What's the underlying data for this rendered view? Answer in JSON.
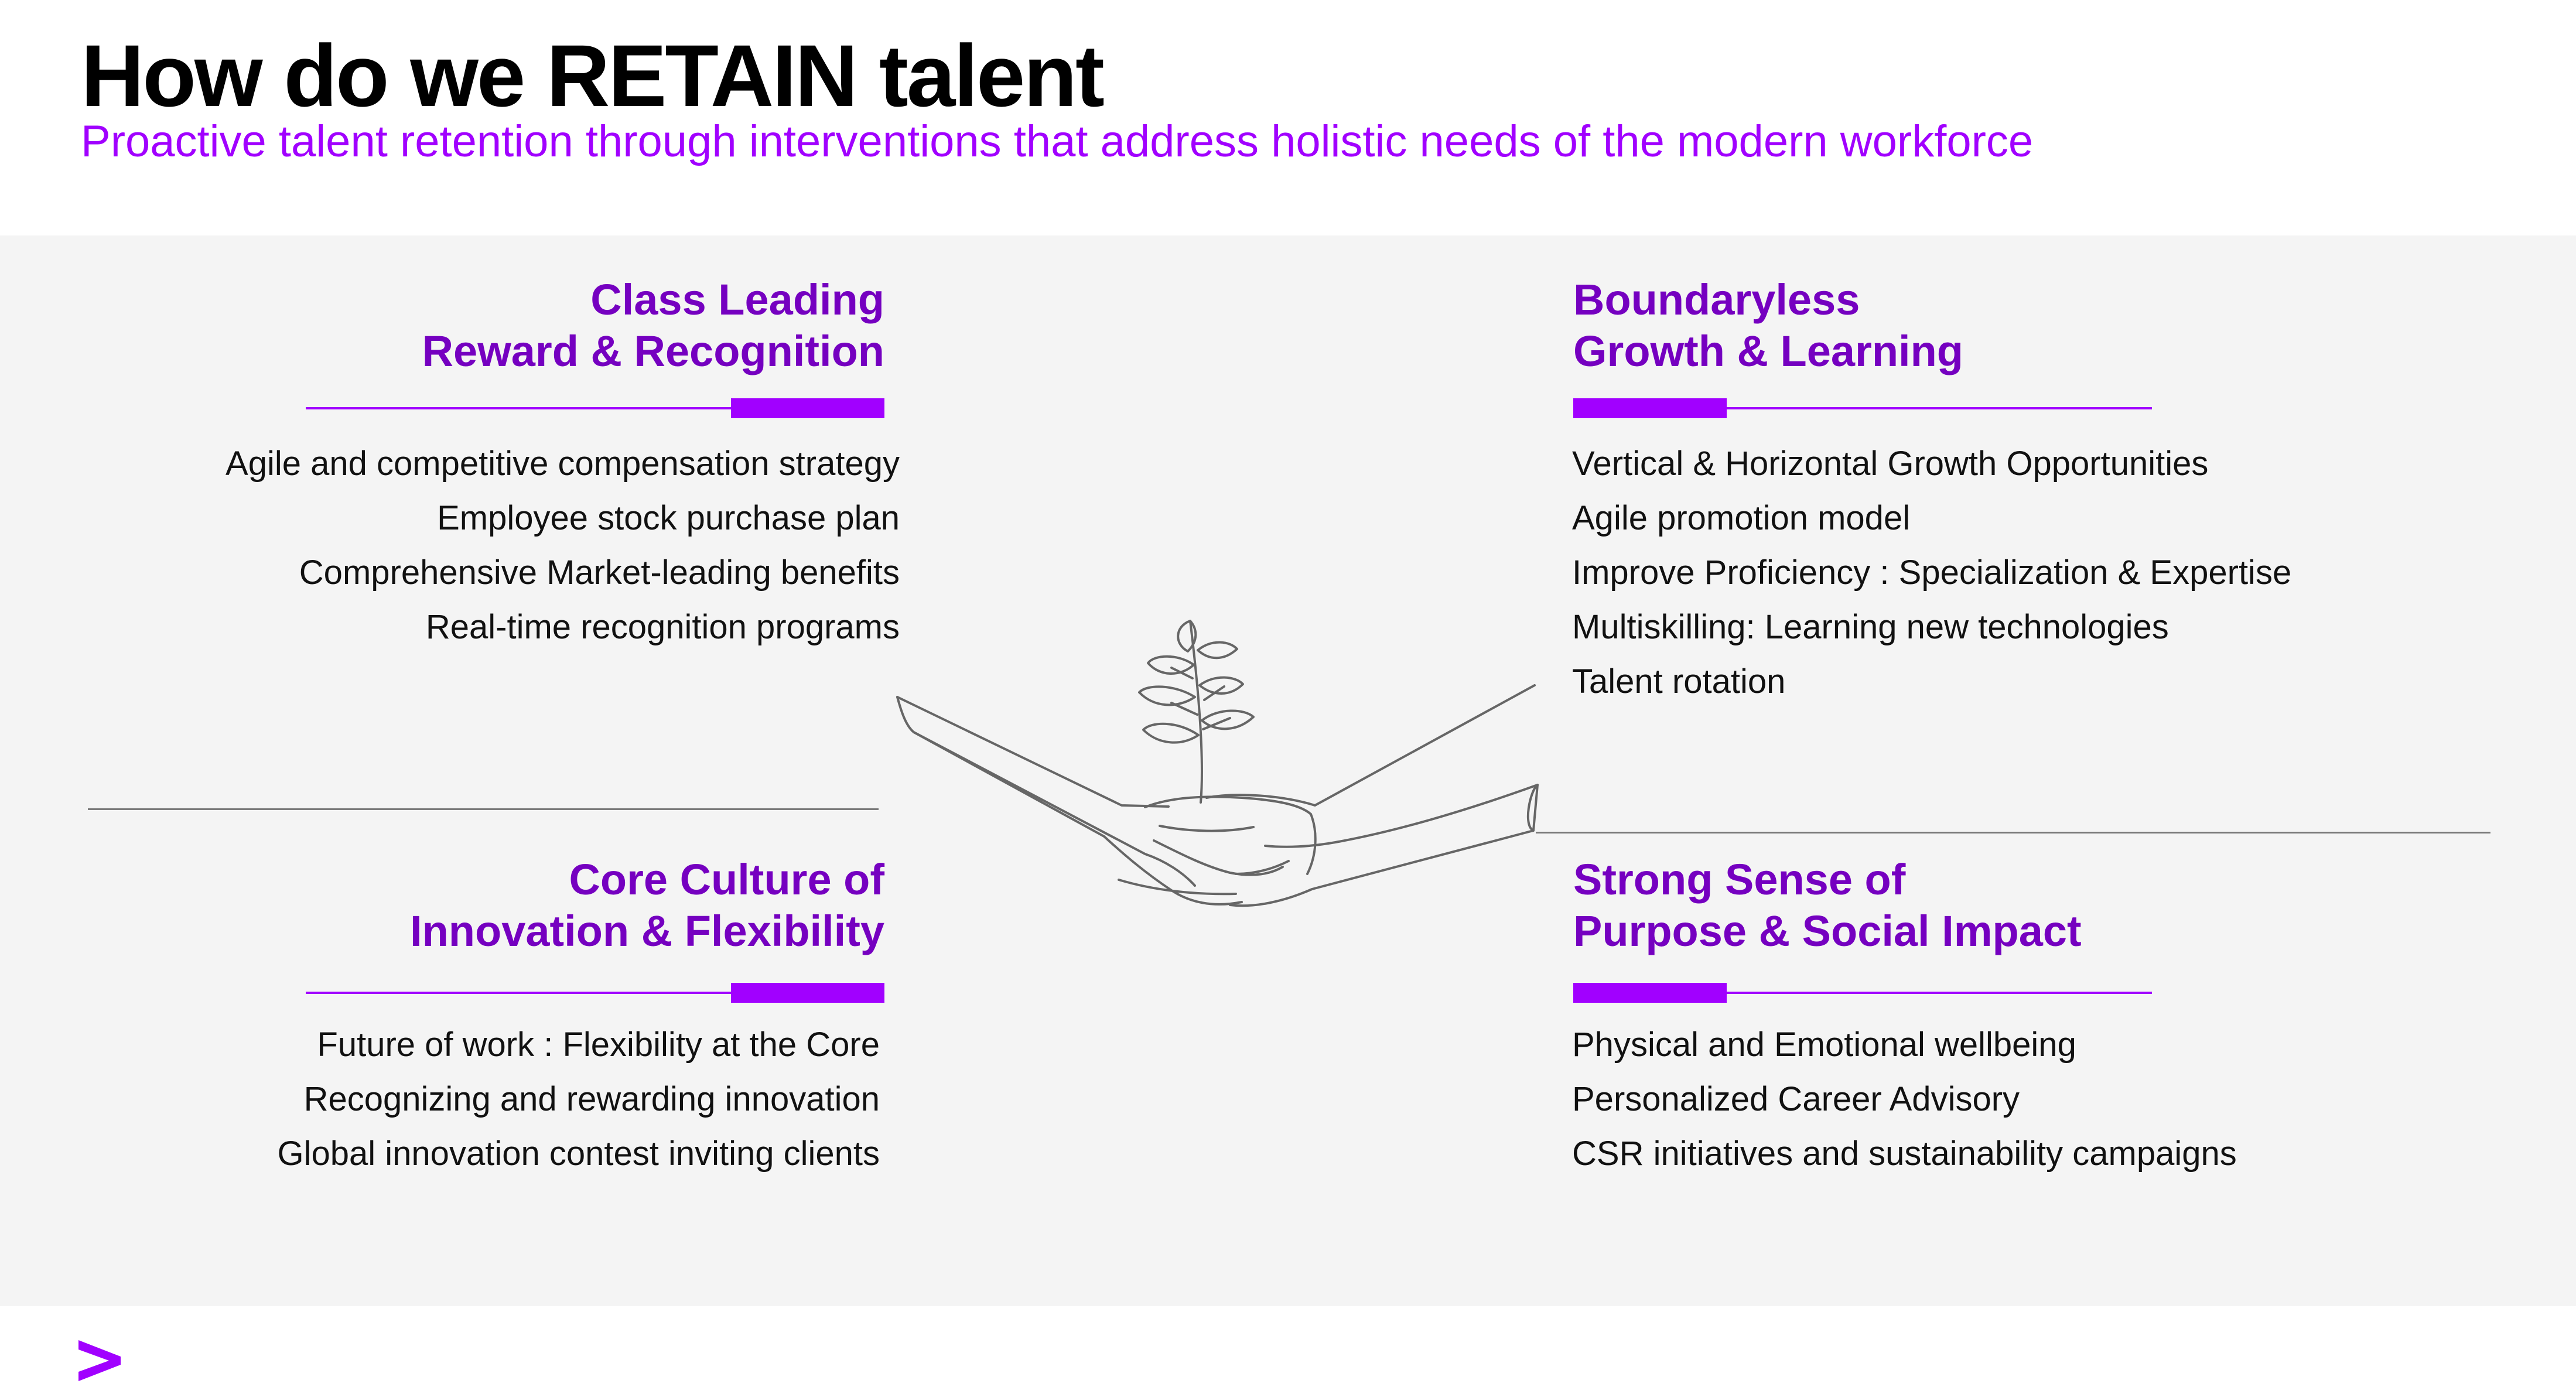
{
  "header": {
    "title": "How do we RETAIN talent",
    "subtitle": "Proactive talent retention through interventions that address holistic needs of the modern workforce"
  },
  "quadrants": {
    "top_left": {
      "heading_line1": "Class Leading",
      "heading_line2": "Reward & Recognition",
      "items": [
        "Agile and competitive compensation strategy",
        "Employee stock purchase plan",
        "Comprehensive Market-leading benefits",
        "Real-time recognition programs"
      ]
    },
    "top_right": {
      "heading_line1": "Boundaryless",
      "heading_line2": "Growth & Learning",
      "items": [
        "Vertical & Horizontal Growth Opportunities",
        "Agile promotion model",
        "Improve Proficiency : Specialization & Expertise",
        "Multiskilling: Learning new technologies",
        "Talent rotation"
      ]
    },
    "bottom_left": {
      "heading_line1": "Core Culture of",
      "heading_line2": "Innovation & Flexibility",
      "items": [
        "Future of work : Flexibility at the Core",
        "Recognizing and rewarding innovation",
        "Global innovation contest inviting clients"
      ]
    },
    "bottom_right": {
      "heading_line1": "Strong Sense of",
      "heading_line2": "Purpose & Social Impact",
      "items": [
        "Physical and Emotional wellbeing",
        "Personalized Career Advisory",
        "CSR initiatives and sustainability campaigns"
      ]
    }
  },
  "illustration": {
    "icon": "hands-holding-plant-icon"
  },
  "branding": {
    "logo_icon": "accenture-chevron-icon"
  },
  "colors": {
    "accent": "#a100ff",
    "heading": "#7500c0",
    "panel_bg": "#f4f4f4",
    "divider": "#7a7a7a"
  }
}
